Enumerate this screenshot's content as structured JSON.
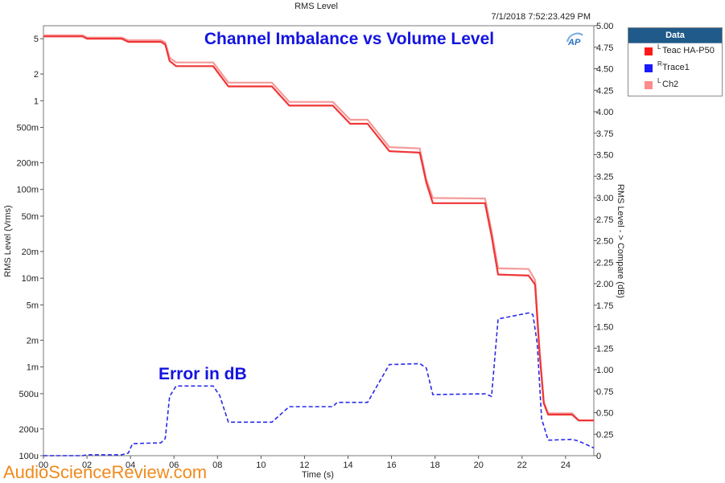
{
  "chart_title": "RMS Level",
  "timestamp": "7/1/2018 7:52:23.429 PM",
  "annotations": {
    "main": "Channel Imbalance vs Volume Level",
    "error": "Error in dB"
  },
  "legend": {
    "title": "Data",
    "items": [
      {
        "channel": "L",
        "label": "Teac HA-P50",
        "color": "#ff1a1a"
      },
      {
        "channel": "R",
        "label": "Trace1",
        "color": "#1a1aff"
      },
      {
        "channel": "L",
        "label": "Ch2",
        "color": "#ff8a8a"
      }
    ]
  },
  "watermark": "AudioScienceReview.com",
  "colors": {
    "teac": "#f03535",
    "ch2": "#f59a9a",
    "trace1": "#2a2ae8",
    "annotation": "#1414e0",
    "watermark": "#f08a1c"
  },
  "chart_data": {
    "type": "line",
    "title": "RMS Level",
    "xlabel": "Time (s)",
    "ylabel": "RMS Level (Vrms)",
    "y2label": "RMS Level - > Compare (dB)",
    "xlim": [
      0,
      25.3
    ],
    "ylim": [
      0.0001,
      7
    ],
    "yscale": "log",
    "y2lim": [
      0,
      5
    ],
    "grid": false,
    "legend_position": "top-right",
    "x_ticks": [
      "00",
      "02",
      "04",
      "06",
      "08",
      "10",
      "12",
      "14",
      "16",
      "18",
      "20",
      "22",
      "24"
    ],
    "x_tick_values": [
      0,
      2,
      4,
      6,
      8,
      10,
      12,
      14,
      16,
      18,
      20,
      22,
      24
    ],
    "y_ticks": [
      "5",
      "2",
      "1",
      "500m",
      "200m",
      "100m",
      "50m",
      "20m",
      "10m",
      "5m",
      "2m",
      "1m",
      "500u",
      "200u",
      "100u"
    ],
    "y_tick_values": [
      5,
      2,
      1,
      0.5,
      0.2,
      0.1,
      0.05,
      0.02,
      0.01,
      0.005,
      0.002,
      0.001,
      0.0005,
      0.0002,
      0.0001
    ],
    "y2_ticks": [
      "5.00",
      "4.75",
      "4.50",
      "4.25",
      "4.00",
      "3.75",
      "3.50",
      "3.25",
      "3.00",
      "2.75",
      "2.50",
      "2.25",
      "2.00",
      "1.75",
      "1.50",
      "1.25",
      "1.00",
      "0.75",
      "0.50",
      "0.25",
      "0"
    ],
    "y2_tick_values": [
      5,
      4.75,
      4.5,
      4.25,
      4,
      3.75,
      3.5,
      3.25,
      3,
      2.75,
      2.5,
      2.25,
      2,
      1.75,
      1.5,
      1.25,
      1,
      0.75,
      0.5,
      0.25,
      0
    ],
    "series": [
      {
        "name": "Teac HA-P50",
        "axis": "left",
        "x": [
          0,
          1.8,
          2.0,
          3.6,
          3.9,
          5.4,
          5.6,
          5.8,
          6.1,
          7.8,
          8.5,
          10.5,
          11.3,
          13.3,
          14.1,
          14.9,
          15.9,
          17.3,
          17.6,
          17.9,
          20.3,
          20.6,
          20.9,
          22.3,
          22.6,
          22.8,
          23.0,
          23.2,
          24.3,
          24.6,
          25.3
        ],
        "y": [
          5.3,
          5.3,
          5.0,
          5.0,
          4.6,
          4.6,
          4.3,
          2.8,
          2.45,
          2.45,
          1.45,
          1.45,
          0.88,
          0.88,
          0.55,
          0.55,
          0.27,
          0.26,
          0.12,
          0.07,
          0.07,
          0.03,
          0.011,
          0.0107,
          0.0085,
          0.0015,
          0.00039,
          0.00029,
          0.00029,
          0.00025,
          0.00025
        ]
      },
      {
        "name": "Ch2",
        "axis": "left",
        "x": [
          0,
          1.8,
          2.0,
          3.6,
          3.9,
          5.4,
          5.6,
          5.8,
          6.1,
          7.8,
          8.5,
          10.5,
          11.3,
          13.3,
          14.1,
          14.9,
          15.9,
          17.3,
          17.6,
          17.9,
          20.3,
          20.6,
          20.9,
          22.3,
          22.6,
          22.8,
          23.0,
          23.2,
          24.3,
          24.6,
          25.3
        ],
        "y": [
          5.45,
          5.45,
          5.15,
          5.15,
          4.8,
          4.8,
          4.55,
          3.05,
          2.7,
          2.7,
          1.6,
          1.6,
          0.97,
          0.97,
          0.61,
          0.61,
          0.3,
          0.29,
          0.13,
          0.08,
          0.079,
          0.034,
          0.0129,
          0.0127,
          0.0095,
          0.0016,
          0.0004,
          0.0003,
          0.0003,
          0.00025,
          0.00025
        ]
      },
      {
        "name": "Trace1",
        "axis": "right",
        "x": [
          0,
          1.8,
          2.0,
          3.6,
          3.9,
          4.1,
          5.4,
          5.6,
          5.8,
          6.1,
          7.8,
          8.1,
          8.5,
          10.5,
          11.3,
          13.3,
          13.5,
          14.9,
          15.9,
          17.3,
          17.6,
          17.9,
          20.3,
          20.6,
          20.9,
          22.3,
          22.5,
          22.7,
          22.9,
          23.2,
          24.3,
          24.6,
          25.3
        ],
        "y": [
          0,
          0,
          0.01,
          0.01,
          0.03,
          0.14,
          0.15,
          0.2,
          0.69,
          0.81,
          0.81,
          0.7,
          0.39,
          0.39,
          0.57,
          0.57,
          0.62,
          0.62,
          1.06,
          1.07,
          1.02,
          0.71,
          0.72,
          0.69,
          1.59,
          1.66,
          1.64,
          1.3,
          0.43,
          0.18,
          0.19,
          0.17,
          0.09
        ]
      }
    ]
  }
}
